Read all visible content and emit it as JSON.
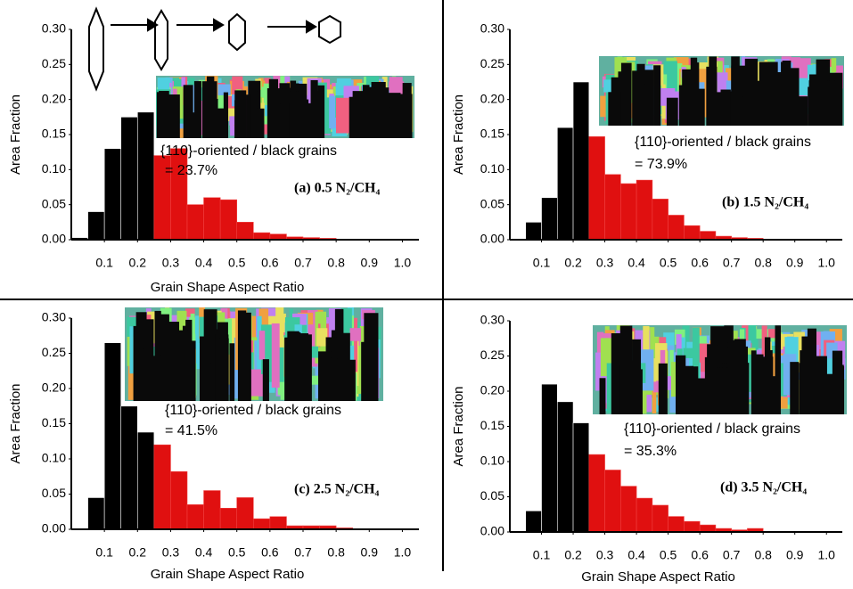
{
  "chart_data": [
    {
      "type": "histogram",
      "xlabel": "Grain Shape Aspect Ratio",
      "ylabel": "Area Fraction",
      "bins": [
        0,
        0.05,
        0.1,
        0.15,
        0.2,
        0.25,
        0.3,
        0.35,
        0.4,
        0.45,
        0.5,
        0.55,
        0.6,
        0.65,
        0.7,
        0.75,
        0.8,
        0.85,
        0.9,
        0.95,
        1.0
      ],
      "counts": [
        0.003,
        0.04,
        0.13,
        0.175,
        0.182,
        0.12,
        0.13,
        0.05,
        0.06,
        0.057,
        0.025,
        0.01,
        0.008,
        0.004,
        0.003,
        0.002,
        0,
        0,
        0,
        0
      ],
      "colors": [
        "#000000",
        "#000000",
        "#000000",
        "#000000",
        "#000000",
        "#e01010",
        "#e01010",
        "#e01010",
        "#e01010",
        "#e01010",
        "#e01010",
        "#e01010",
        "#e01010",
        "#e01010",
        "#e01010",
        "#e01010",
        "#e01010",
        "#e01010",
        "#e01010",
        "#e01010"
      ],
      "xlim": [
        0,
        1.05
      ],
      "ylim": [
        0,
        0.3
      ],
      "xticks": [
        0.1,
        0.2,
        0.3,
        0.4,
        0.5,
        0.6,
        0.7,
        0.8,
        0.9,
        {
          "value": 1.0,
          "label": "1.0"
        }
      ],
      "yticks": [
        {
          "value": 0,
          "label": "0.00"
        },
        {
          "value": 0.05,
          "label": "0.05"
        },
        {
          "value": 0.1,
          "label": "0.10"
        },
        {
          "value": 0.15,
          "label": "0.15"
        },
        {
          "value": 0.2,
          "label": "0.20"
        },
        {
          "value": 0.25,
          "label": "0.25"
        },
        {
          "value": 0.3,
          "label": "0.30"
        }
      ],
      "annotations": [
        "{110}-oriented / black grains",
        "= 23.7%",
        "(a) 0.5 N₂/CH₄"
      ]
    },
    {
      "type": "histogram",
      "xlabel": null,
      "ylabel": "Area Fraction",
      "bins": [
        0,
        0.05,
        0.1,
        0.15,
        0.2,
        0.25,
        0.3,
        0.35,
        0.4,
        0.45,
        0.5,
        0.55,
        0.6,
        0.65,
        0.7,
        0.75,
        0.8,
        0.85,
        0.9,
        0.95,
        1.0
      ],
      "counts": [
        0,
        0.025,
        0.06,
        0.16,
        0.225,
        0.147,
        0.093,
        0.08,
        0.085,
        0.058,
        0.035,
        0.02,
        0.012,
        0.005,
        0.003,
        0.002,
        0,
        0,
        0,
        0
      ],
      "colors": [
        "#000000",
        "#000000",
        "#000000",
        "#000000",
        "#000000",
        "#e01010",
        "#e01010",
        "#e01010",
        "#e01010",
        "#e01010",
        "#e01010",
        "#e01010",
        "#e01010",
        "#e01010",
        "#e01010",
        "#e01010",
        "#e01010",
        "#e01010",
        "#e01010",
        "#e01010"
      ],
      "xlim": [
        0,
        1.05
      ],
      "ylim": [
        0,
        0.3
      ],
      "xticks": [
        0.1,
        0.2,
        0.3,
        0.4,
        0.5,
        0.6,
        0.7,
        0.8,
        0.9,
        {
          "value": 1.0,
          "label": "1.0"
        }
      ],
      "yticks": [
        {
          "value": 0,
          "label": "0.00"
        },
        {
          "value": 0.05,
          "label": "0.05"
        },
        {
          "value": 0.1,
          "label": "0.10"
        },
        {
          "value": 0.15,
          "label": "0.15"
        },
        {
          "value": 0.2,
          "label": "0.20"
        },
        {
          "value": 0.25,
          "label": "0.25"
        },
        {
          "value": 0.3,
          "label": "0.30"
        }
      ],
      "annotations": [
        "{110}-oriented / black grains",
        "= 73.9%",
        "(b) 1.5 N₂/CH₄"
      ]
    },
    {
      "type": "histogram",
      "xlabel": "Grain Shape Aspect Ratio",
      "ylabel": "Area Fraction",
      "bins": [
        0,
        0.05,
        0.1,
        0.15,
        0.2,
        0.25,
        0.3,
        0.35,
        0.4,
        0.45,
        0.5,
        0.55,
        0.6,
        0.65,
        0.7,
        0.75,
        0.8,
        0.85,
        0.9,
        0.95,
        1.0
      ],
      "counts": [
        0,
        0.045,
        0.265,
        0.175,
        0.138,
        0.12,
        0.082,
        0.035,
        0.055,
        0.03,
        0.045,
        0.015,
        0.018,
        0.005,
        0.005,
        0.005,
        0.002,
        0,
        0,
        0
      ],
      "colors": [
        "#000000",
        "#000000",
        "#000000",
        "#000000",
        "#000000",
        "#e01010",
        "#e01010",
        "#e01010",
        "#e01010",
        "#e01010",
        "#e01010",
        "#e01010",
        "#e01010",
        "#e01010",
        "#e01010",
        "#e01010",
        "#e01010",
        "#e01010",
        "#e01010",
        "#e01010"
      ],
      "xlim": [
        0,
        1.05
      ],
      "ylim": [
        0,
        0.3
      ],
      "xticks": [
        0.1,
        0.2,
        0.3,
        0.4,
        0.5,
        0.6,
        0.7,
        0.8,
        0.9,
        {
          "value": 1.0,
          "label": "1.0"
        }
      ],
      "yticks": [
        {
          "value": 0,
          "label": "0.00"
        },
        {
          "value": 0.05,
          "label": "0.05"
        },
        {
          "value": 0.1,
          "label": "0.10"
        },
        {
          "value": 0.15,
          "label": "0.15"
        },
        {
          "value": 0.2,
          "label": "0.20"
        },
        {
          "value": 0.25,
          "label": "0.25"
        },
        {
          "value": 0.3,
          "label": "0.30"
        }
      ],
      "annotations": [
        "{110}-oriented / black grains",
        "= 41.5%",
        "(c) 2.5 N₂/CH₄"
      ]
    },
    {
      "type": "histogram",
      "xlabel": "Grain Shape Aspect Ratio",
      "ylabel": "Area Fraction",
      "bins": [
        0,
        0.05,
        0.1,
        0.15,
        0.2,
        0.25,
        0.3,
        0.35,
        0.4,
        0.45,
        0.5,
        0.55,
        0.6,
        0.65,
        0.7,
        0.75,
        0.8,
        0.85,
        0.9,
        0.95,
        1.0
      ],
      "counts": [
        0,
        0.03,
        0.21,
        0.185,
        0.155,
        0.11,
        0.088,
        0.065,
        0.048,
        0.038,
        0.022,
        0.015,
        0.01,
        0.005,
        0.003,
        0.005,
        0,
        0,
        0,
        0
      ],
      "colors": [
        "#000000",
        "#000000",
        "#000000",
        "#000000",
        "#000000",
        "#e01010",
        "#e01010",
        "#e01010",
        "#e01010",
        "#e01010",
        "#e01010",
        "#e01010",
        "#e01010",
        "#e01010",
        "#e01010",
        "#e01010",
        "#e01010",
        "#e01010",
        "#e01010",
        "#e01010"
      ],
      "xlim": [
        0,
        1.05
      ],
      "ylim": [
        0,
        0.3
      ],
      "xticks": [
        0.1,
        0.2,
        0.3,
        0.4,
        0.5,
        0.6,
        0.7,
        0.8,
        0.9,
        {
          "value": 1.0,
          "label": "1.0"
        }
      ],
      "yticks": [
        {
          "value": 0,
          "label": "0.00"
        },
        {
          "value": 0.05,
          "label": "0.05"
        },
        {
          "value": 0.1,
          "label": "0.10"
        },
        {
          "value": 0.15,
          "label": "0.15"
        },
        {
          "value": 0.2,
          "label": "0.20"
        },
        {
          "value": 0.25,
          "label": "0.25"
        },
        {
          "value": 0.3,
          "label": "0.30"
        }
      ],
      "annotations": [
        "{110}-oriented / black grains",
        "= 35.3%",
        "(d) 3.5 N₂/CH₄"
      ]
    }
  ]
}
